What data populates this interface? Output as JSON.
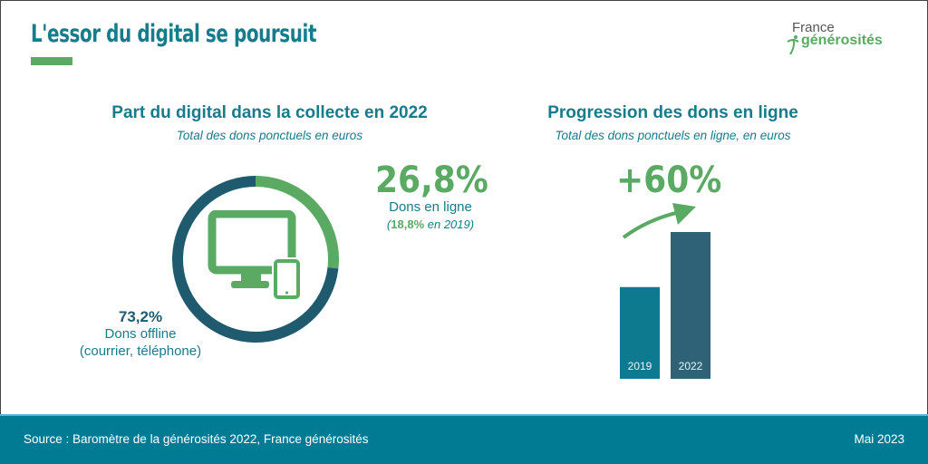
{
  "header": {
    "title": "L'essor du digital se poursuit",
    "logo_line1": "France",
    "logo_line2": "générosités"
  },
  "left": {
    "heading": "Part du digital dans la collecte en 2022",
    "subheading": "Total des dons ponctuels en euros",
    "online_pct": "26,8%",
    "online_label": "Dons en ligne",
    "online_prev_open": "(",
    "online_prev_value": "18,8%",
    "online_prev_rest": " en 2019)",
    "offline_pct": "73,2%",
    "offline_label": "Dons offline",
    "offline_detail": "(courrier, téléphone)"
  },
  "right": {
    "heading": "Progression des dons en ligne",
    "subheading": "Total des dons ponctuels en ligne, en euros",
    "growth": "+60%"
  },
  "footer": {
    "source": "Source : Baromètre de la générosités 2022, France générosités",
    "date": "Mai 2023"
  },
  "colors": {
    "teal": "#167b8a",
    "green": "#5aaa64",
    "dark": "#1f5a6e",
    "bar2019": "#0e7a8f",
    "bar2022": "#2f6277",
    "footer": "#007b94"
  },
  "chart_data": [
    {
      "type": "pie",
      "title": "Part du digital dans la collecte en 2022",
      "subtitle": "Total des dons ponctuels en euros",
      "donut": true,
      "slices": [
        {
          "label": "Dons en ligne",
          "value": 26.8,
          "color": "#5aaa64"
        },
        {
          "label": "Dons offline (courrier, téléphone)",
          "value": 73.2,
          "color": "#1f5a6e"
        }
      ]
    },
    {
      "type": "bar",
      "title": "Progression des dons en ligne",
      "subtitle": "Total des dons ponctuels en ligne, en euros",
      "categories": [
        "2019",
        "2022"
      ],
      "values": [
        1,
        1.6
      ],
      "colors": [
        "#0e7a8f",
        "#2f6277"
      ],
      "annotation": "+60%"
    }
  ]
}
